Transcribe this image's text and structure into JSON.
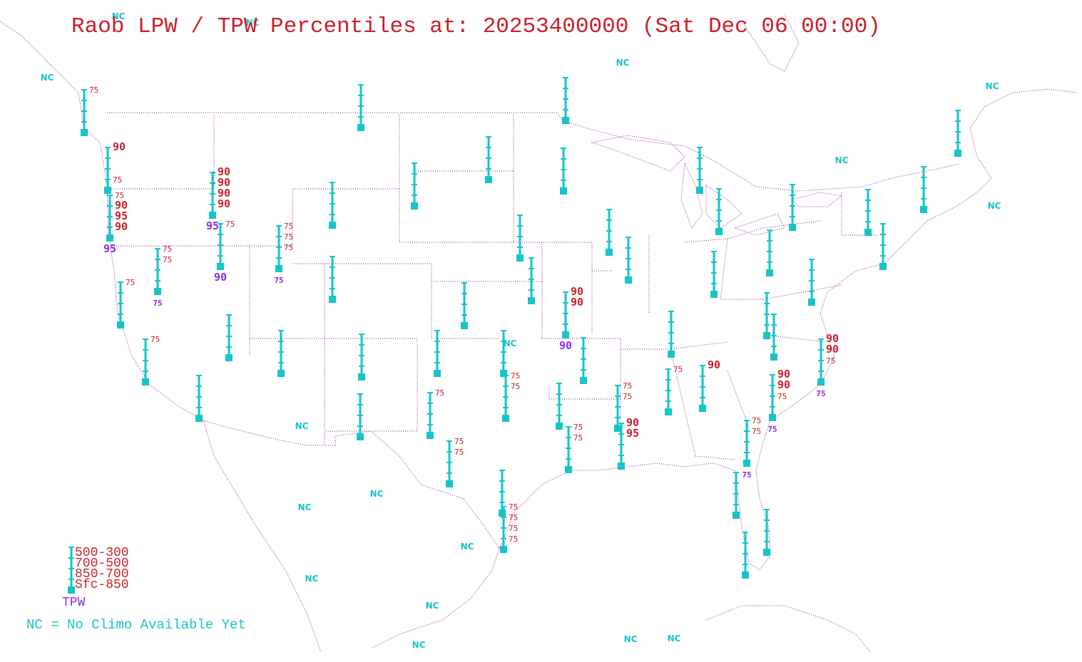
{
  "title": "Raob LPW / TPW Percentiles at: 20253400000 (Sat Dec 06 00:00)",
  "colors": {
    "background": "#ffffff",
    "boundaries": "#8b1a9b",
    "station": "#17c4c8",
    "layer_percentile": "#c8202a",
    "tpw_percentile": "#8a2be2",
    "no_climo": "#17c4c8"
  },
  "legend": {
    "layers": [
      "500-300",
      "700-500",
      "850-700",
      "Sfc-850"
    ],
    "tpw_label": "TPW",
    "nc_note": "NC = No Climo Available Yet"
  },
  "nc_label": "NC",
  "stations": [
    {
      "lbl": [
        "75",
        "",
        "",
        ""
      ],
      "tpw": ""
    },
    {
      "lbl": [
        "90",
        "",
        "",
        "75"
      ],
      "tpw": ""
    },
    {
      "lbl": [
        "75",
        "90",
        "95",
        "90"
      ],
      "tpw": "95"
    },
    {
      "lbl": [
        "90",
        "90",
        "90",
        "90"
      ],
      "tpw": "95"
    },
    {
      "lbl": [
        "75",
        "",
        "",
        ""
      ],
      "tpw": "90"
    },
    {
      "lbl": [
        "75",
        "75",
        "75",
        ""
      ],
      "tpw": "75"
    },
    {
      "lbl": [
        "75",
        "75",
        "",
        ""
      ],
      "tpw": "75"
    },
    {
      "lbl": [
        "75",
        "",
        "",
        ""
      ],
      "tpw": ""
    },
    {
      "lbl": [
        "75",
        "",
        "",
        ""
      ],
      "tpw": ""
    },
    {
      "lbl": [
        "",
        "",
        "",
        ""
      ],
      "tpw": ""
    },
    {
      "lbl": [
        "",
        "",
        "",
        ""
      ],
      "tpw": ""
    },
    {
      "lbl": [
        "",
        "",
        "",
        ""
      ],
      "tpw": ""
    },
    {
      "lbl": [
        "",
        "",
        "",
        ""
      ],
      "tpw": ""
    },
    {
      "lbl": [
        "",
        "",
        "",
        ""
      ],
      "tpw": ""
    },
    {
      "lbl": [
        "",
        "",
        "",
        ""
      ],
      "tpw": ""
    },
    {
      "lbl": [
        "",
        "",
        "",
        ""
      ],
      "tpw": ""
    },
    {
      "lbl": [
        "",
        "",
        "",
        ""
      ],
      "tpw": ""
    },
    {
      "lbl": [
        "",
        "",
        "",
        ""
      ],
      "tpw": ""
    },
    {
      "lbl": [
        "",
        "",
        "",
        ""
      ],
      "tpw": ""
    },
    {
      "lbl": [
        "",
        "",
        "",
        ""
      ],
      "tpw": ""
    },
    {
      "lbl": [
        "",
        "",
        "",
        ""
      ],
      "tpw": ""
    },
    {
      "lbl": [
        "",
        "",
        "",
        ""
      ],
      "tpw": ""
    },
    {
      "lbl": [
        "",
        "",
        "",
        ""
      ],
      "tpw": ""
    },
    {
      "lbl": [
        "",
        "",
        "",
        ""
      ],
      "tpw": ""
    },
    {
      "lbl": [
        "",
        "",
        "",
        ""
      ],
      "tpw": ""
    },
    {
      "lbl": [
        "75",
        "",
        "",
        ""
      ],
      "tpw": ""
    },
    {
      "lbl": [
        "75",
        "75",
        "",
        ""
      ],
      "tpw": ""
    },
    {
      "lbl": [
        "",
        "",
        "",
        ""
      ],
      "tpw": ""
    },
    {
      "lbl": [
        "75",
        "75",
        "",
        ""
      ],
      "tpw": ""
    },
    {
      "lbl": [
        "",
        "",
        "",
        ""
      ],
      "tpw": ""
    },
    {
      "lbl": [
        "75",
        "75",
        "75",
        "75"
      ],
      "tpw": ""
    },
    {
      "lbl": [
        "90",
        "90",
        "",
        ""
      ],
      "tpw": "90"
    },
    {
      "lbl": [
        "",
        "",
        "",
        ""
      ],
      "tpw": ""
    },
    {
      "lbl": [
        "75",
        "75",
        "",
        ""
      ],
      "tpw": ""
    },
    {
      "lbl": [
        "",
        "",
        "",
        ""
      ],
      "tpw": ""
    },
    {
      "lbl": [
        "75",
        "75",
        "",
        ""
      ],
      "tpw": ""
    },
    {
      "lbl": [
        "90",
        "95",
        "",
        ""
      ],
      "tpw": ""
    },
    {
      "lbl": [
        "",
        "",
        "",
        ""
      ],
      "tpw": ""
    },
    {
      "lbl": [
        "",
        "",
        "",
        ""
      ],
      "tpw": ""
    },
    {
      "lbl": [
        "",
        "",
        "",
        ""
      ],
      "tpw": ""
    },
    {
      "lbl": [
        "",
        "",
        "",
        ""
      ],
      "tpw": ""
    },
    {
      "lbl": [
        "",
        "",
        "",
        ""
      ],
      "tpw": ""
    },
    {
      "lbl": [
        "",
        "",
        "",
        ""
      ],
      "tpw": ""
    },
    {
      "lbl": [
        "75",
        "",
        "",
        ""
      ],
      "tpw": ""
    },
    {
      "lbl": [
        "90",
        "",
        "",
        ""
      ],
      "tpw": ""
    },
    {
      "lbl": [
        "",
        "",
        "",
        ""
      ],
      "tpw": ""
    },
    {
      "lbl": [
        "",
        "",
        "",
        ""
      ],
      "tpw": ""
    },
    {
      "lbl": [
        "",
        "",
        "",
        ""
      ],
      "tpw": ""
    },
    {
      "lbl": [
        "",
        "",
        "",
        ""
      ],
      "tpw": ""
    },
    {
      "lbl": [
        "",
        "",
        "",
        ""
      ],
      "tpw": ""
    },
    {
      "lbl": [
        "",
        "",
        "",
        ""
      ],
      "tpw": ""
    },
    {
      "lbl": [
        "90",
        "90",
        "75",
        ""
      ],
      "tpw": "75"
    },
    {
      "lbl": [
        "75",
        "75",
        "",
        ""
      ],
      "tpw": "75"
    },
    {
      "lbl": [
        "",
        "",
        "",
        ""
      ],
      "tpw": ""
    },
    {
      "lbl": [
        "",
        "",
        "",
        ""
      ],
      "tpw": ""
    },
    {
      "lbl": [
        "",
        "",
        "",
        ""
      ],
      "tpw": ""
    },
    {
      "lbl": [
        "",
        "",
        "",
        ""
      ],
      "tpw": ""
    },
    {
      "lbl": [
        "",
        "",
        "",
        ""
      ],
      "tpw": ""
    },
    {
      "lbl": [
        "",
        "",
        "",
        ""
      ],
      "tpw": ""
    },
    {
      "lbl": [
        "",
        "",
        "",
        ""
      ],
      "tpw": ""
    },
    {
      "lbl": [
        "",
        "",
        "",
        ""
      ],
      "tpw": ""
    },
    {
      "lbl": [
        "",
        "",
        "",
        ""
      ],
      "tpw": ""
    },
    {
      "lbl": [
        "90",
        "90",
        "75",
        ""
      ],
      "tpw": "75"
    },
    {
      "lbl": [
        "",
        "",
        "",
        ""
      ],
      "tpw": ""
    }
  ]
}
